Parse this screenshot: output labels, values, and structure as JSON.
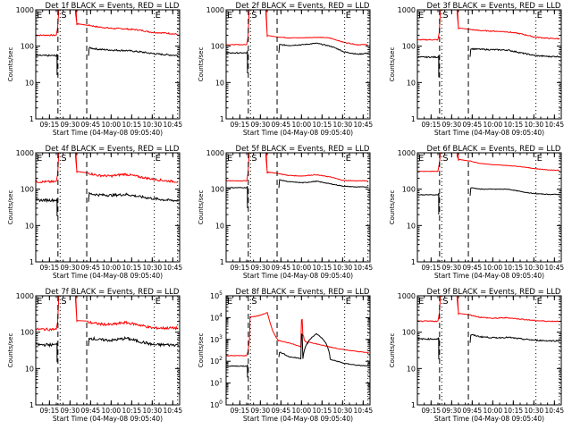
{
  "chart_data": [
    {
      "type": "line",
      "detector": "1f",
      "title": "Det 1f BLACK = Events, RED = LLD",
      "xlabel": "Start Time (04-May-08 09:05:40)",
      "ylabel": "Counts/sec",
      "yscale": "log",
      "ylim": [
        1,
        1000
      ],
      "yticks": [
        "1",
        "10",
        "100",
        "1000"
      ],
      "xticks": [
        "09:15",
        "09:30",
        "09:45",
        "10:00",
        "10:15",
        "10:30",
        "10:45"
      ],
      "xlim_min": [
        0,
        105
      ],
      "markers": {
        "start_label": "S",
        "end_label": "E",
        "left_label": "E"
      },
      "series": [
        {
          "name": "LLD",
          "color": "#ff0000",
          "pre": 200,
          "post": [
            380,
            340,
            310,
            300,
            280,
            240,
            230,
            210
          ],
          "noise": 0.04
        },
        {
          "name": "Events",
          "color": "#000000",
          "pre": 55,
          "dip": 16,
          "post": [
            90,
            82,
            78,
            76,
            70,
            62,
            58,
            55
          ],
          "noise": 0.05
        }
      ]
    },
    {
      "type": "line",
      "detector": "2f",
      "title": "Det 2f BLACK = Events, RED = LLD",
      "xlabel": "Start Time (04-May-08 09:05:40)",
      "ylabel": "Counts/sec",
      "yscale": "log",
      "ylim": [
        1,
        1000
      ],
      "yticks": [
        "1",
        "10",
        "100",
        "1000"
      ],
      "xticks": [
        "09:15",
        "09:30",
        "09:45",
        "10:00",
        "10:15",
        "10:30",
        "10:45"
      ],
      "xlim_min": [
        0,
        105
      ],
      "markers": {
        "start_label": "S",
        "end_label": "E",
        "left_label": "E"
      },
      "series": [
        {
          "name": "LLD",
          "color": "#ff0000",
          "pre": 110,
          "post": [
            180,
            170,
            170,
            175,
            170,
            130,
            110,
            110
          ],
          "noise": 0.02
        },
        {
          "name": "Events",
          "color": "#000000",
          "pre": 65,
          "dip": 18,
          "post": [
            110,
            105,
            110,
            120,
            100,
            70,
            60,
            65
          ],
          "noise": 0.03
        }
      ]
    },
    {
      "type": "line",
      "detector": "3f",
      "title": "Det 3f BLACK = Events, RED = LLD",
      "xlabel": "Start Time (04-May-08 09:05:40)",
      "ylabel": "Counts/sec",
      "yscale": "log",
      "ylim": [
        1,
        1000
      ],
      "yticks": [
        "1",
        "10",
        "100",
        "1000"
      ],
      "xticks": [
        "09:15",
        "09:30",
        "09:45",
        "10:00",
        "10:15",
        "10:30",
        "10:45"
      ],
      "xlim_min": [
        0,
        105
      ],
      "markers": {
        "start_label": "S",
        "end_label": "E",
        "left_label": "E"
      },
      "series": [
        {
          "name": "LLD",
          "color": "#ff0000",
          "pre": 150,
          "post": [
            290,
            270,
            260,
            250,
            220,
            180,
            165,
            160
          ],
          "noise": 0.03
        },
        {
          "name": "Events",
          "color": "#000000",
          "pre": 50,
          "dip": 14,
          "post": [
            85,
            82,
            80,
            78,
            65,
            55,
            52,
            52
          ],
          "noise": 0.04
        }
      ]
    },
    {
      "type": "line",
      "detector": "4f",
      "title": "Det 4f BLACK = Events, RED = LLD",
      "xlabel": "Start Time (04-May-08 09:05:40)",
      "ylabel": "Counts/sec",
      "yscale": "log",
      "ylim": [
        1,
        1000
      ],
      "yticks": [
        "1",
        "10",
        "100",
        "1000"
      ],
      "xticks": [
        "09:15",
        "09:30",
        "09:45",
        "10:00",
        "10:15",
        "10:30",
        "10:45"
      ],
      "xlim_min": [
        0,
        105
      ],
      "markers": {
        "start_label": "S",
        "end_label": "E",
        "left_label": "E"
      },
      "series": [
        {
          "name": "LLD",
          "color": "#ff0000",
          "pre": 160,
          "post": [
            280,
            240,
            230,
            260,
            220,
            190,
            170,
            160
          ],
          "noise": 0.07
        },
        {
          "name": "Events",
          "color": "#000000",
          "pre": 50,
          "dip": 18,
          "post": [
            75,
            70,
            68,
            72,
            62,
            55,
            50,
            48
          ],
          "noise": 0.08
        }
      ]
    },
    {
      "type": "line",
      "detector": "5f",
      "title": "Det 5f BLACK = Events, RED = LLD",
      "xlabel": "Start Time (04-May-08 09:05:40)",
      "ylabel": "Counts/sec",
      "yscale": "log",
      "ylim": [
        1,
        1000
      ],
      "yticks": [
        "1",
        "10",
        "100",
        "1000"
      ],
      "xticks": [
        "09:15",
        "09:30",
        "09:45",
        "10:00",
        "10:15",
        "10:30",
        "10:45"
      ],
      "xlim_min": [
        0,
        105
      ],
      "markers": {
        "start_label": "S",
        "end_label": "E",
        "left_label": "E"
      },
      "series": [
        {
          "name": "LLD",
          "color": "#ff0000",
          "pre": 170,
          "post": [
            270,
            240,
            230,
            250,
            220,
            175,
            170,
            170
          ],
          "noise": 0.02
        },
        {
          "name": "Events",
          "color": "#000000",
          "pre": 110,
          "dip": 30,
          "post": [
            180,
            160,
            150,
            165,
            140,
            120,
            115,
            115
          ],
          "noise": 0.02
        }
      ]
    },
    {
      "type": "line",
      "detector": "6f",
      "title": "Det 6f BLACK = Events, RED = LLD",
      "xlabel": "Start Time (04-May-08 09:05:40)",
      "ylabel": "Counts/sec",
      "yscale": "log",
      "ylim": [
        1,
        1000
      ],
      "yticks": [
        "1",
        "10",
        "100",
        "1000"
      ],
      "xticks": [
        "09:15",
        "09:30",
        "09:45",
        "10:00",
        "10:15",
        "10:30",
        "10:45"
      ],
      "xlim_min": [
        0,
        105
      ],
      "markers": {
        "start_label": "S",
        "end_label": "E",
        "left_label": "E"
      },
      "series": [
        {
          "name": "LLD",
          "color": "#ff0000",
          "pre": 310,
          "post": [
            600,
            520,
            470,
            450,
            420,
            370,
            340,
            330
          ],
          "noise": 0.015
        },
        {
          "name": "Events",
          "color": "#000000",
          "pre": 70,
          "dip": 20,
          "post": [
            110,
            100,
            100,
            100,
            85,
            75,
            72,
            72
          ],
          "noise": 0.02
        }
      ]
    },
    {
      "type": "line",
      "detector": "7f",
      "title": "Det 7f BLACK = Events, RED = LLD",
      "xlabel": "Start Time (04-May-08 09:05:40)",
      "ylabel": "Counts/sec",
      "yscale": "log",
      "ylim": [
        1,
        1000
      ],
      "yticks": [
        "1",
        "10",
        "100",
        "1000"
      ],
      "xticks": [
        "09:15",
        "09:30",
        "09:45",
        "10:00",
        "10:15",
        "10:30",
        "10:45"
      ],
      "xlim_min": [
        0,
        105
      ],
      "markers": {
        "start_label": "S",
        "end_label": "E",
        "left_label": "E"
      },
      "series": [
        {
          "name": "LLD",
          "color": "#ff0000",
          "pre": 120,
          "post": [
            190,
            170,
            160,
            185,
            160,
            130,
            130,
            130
          ],
          "noise": 0.08
        },
        {
          "name": "Events",
          "color": "#000000",
          "pre": 45,
          "dip": 15,
          "post": [
            70,
            62,
            60,
            68,
            55,
            45,
            45,
            45
          ],
          "noise": 0.09
        }
      ]
    },
    {
      "type": "line",
      "detector": "8f",
      "title": "Det 8f BLACK = Events, RED = LLD",
      "xlabel": "Start Time (04-May-08 09:05:40)",
      "ylabel": "Counts/sec",
      "yscale": "log",
      "ylim": [
        1,
        100000
      ],
      "yticks": [
        "10^0",
        "10^1",
        "10^2",
        "10^3",
        "10^4",
        "10^5"
      ],
      "xticks": [
        "09:15",
        "09:30",
        "09:45",
        "10:00",
        "10:15",
        "10:30",
        "10:45"
      ],
      "xlim_min": [
        0,
        105
      ],
      "markers": {
        "start_label": "S",
        "end_label": "E",
        "left_label": "E"
      },
      "series": [
        {
          "name": "LLD",
          "color": "#ff0000",
          "pre": 180,
          "flare_plateau": [
            11000,
            12000,
            17000
          ],
          "post": [
            900,
            600,
            450,
            8000,
            600,
            300,
            220,
            200
          ],
          "noise": 0.03
        },
        {
          "name": "Events",
          "color": "#000000",
          "pre": 60,
          "dip": 18,
          "post": [
            260,
            160,
            130,
            1800,
            120,
            80,
            65,
            60
          ],
          "noise": 0.04
        }
      ]
    },
    {
      "type": "line",
      "detector": "9f",
      "title": "Det 9f BLACK = Events, RED = LLD",
      "xlabel": "Start Time (04-May-08 09:05:40)",
      "ylabel": "Counts/sec",
      "yscale": "log",
      "ylim": [
        1,
        1000
      ],
      "yticks": [
        "1",
        "10",
        "100",
        "1000"
      ],
      "xticks": [
        "09:15",
        "09:30",
        "09:45",
        "10:00",
        "10:15",
        "10:30",
        "10:45"
      ],
      "xlim_min": [
        0,
        105
      ],
      "markers": {
        "start_label": "S",
        "end_label": "E",
        "left_label": "E"
      },
      "series": [
        {
          "name": "LLD",
          "color": "#ff0000",
          "pre": 200,
          "post": [
            300,
            260,
            240,
            250,
            230,
            210,
            200,
            200
          ],
          "noise": 0.03
        },
        {
          "name": "Events",
          "color": "#000000",
          "pre": 65,
          "dip": 18,
          "post": [
            85,
            75,
            70,
            72,
            65,
            60,
            58,
            58
          ],
          "noise": 0.04
        }
      ]
    }
  ]
}
